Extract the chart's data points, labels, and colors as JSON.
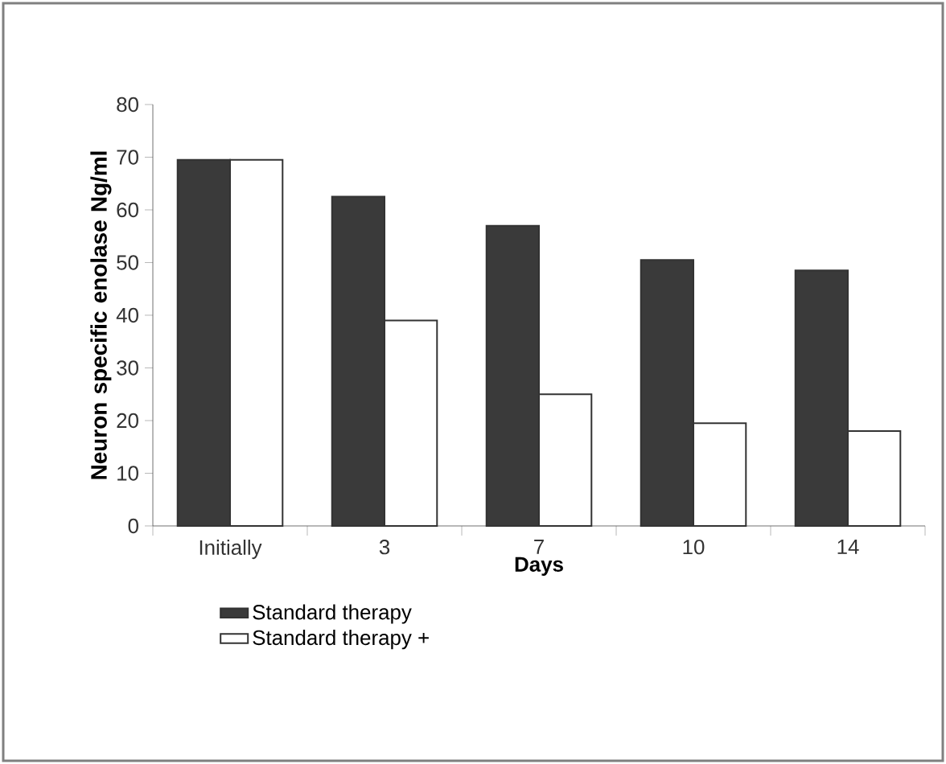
{
  "chart_data": {
    "type": "bar",
    "xlabel": "Days",
    "ylabel": "Neuron specific enolase Ng/ml",
    "categories": [
      "Initially",
      "3",
      "7",
      "10",
      "14"
    ],
    "series": [
      {
        "name": "Standard therapy",
        "color": "#3a3a3a",
        "values": [
          69.5,
          62.5,
          57,
          50.5,
          48.5
        ]
      },
      {
        "name": "Standard therapy +",
        "color": "#ffffff",
        "values": [
          69.5,
          39,
          25,
          19.5,
          18
        ]
      }
    ],
    "ylim": [
      0,
      80
    ],
    "yticks": [
      0,
      10,
      20,
      30,
      40,
      50,
      60,
      70,
      80
    ],
    "legend": "bottom"
  }
}
